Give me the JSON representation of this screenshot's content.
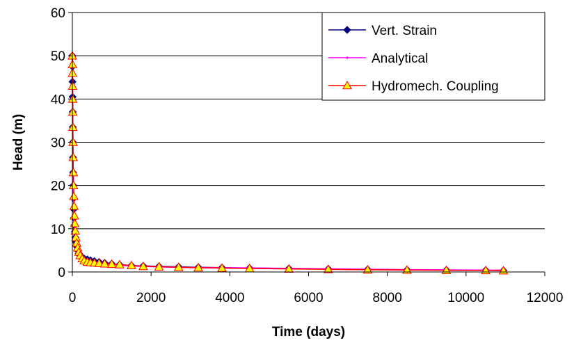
{
  "chart_data": {
    "type": "line",
    "title": "",
    "xlabel": "Time (days)",
    "ylabel": "Head (m)",
    "xlim": [
      0,
      12000
    ],
    "ylim": [
      0,
      60
    ],
    "xticks": [
      0,
      2000,
      4000,
      6000,
      8000,
      10000,
      12000
    ],
    "yticks": [
      0,
      10,
      20,
      30,
      40,
      50,
      60
    ],
    "grid": "horizontal",
    "legend": "top-right",
    "series": [
      {
        "name": "Vert. Strain",
        "color": "#000080",
        "marker": "diamond",
        "x": [
          0,
          2,
          4,
          6,
          8,
          10,
          13,
          16,
          20,
          25,
          30,
          36,
          43,
          52,
          62,
          75,
          90,
          110,
          135,
          165,
          200,
          250,
          300,
          380,
          460,
          560,
          680,
          820,
          1000,
          1200,
          1500,
          1800,
          2200,
          2700,
          3200,
          3800,
          4500,
          5500,
          6500,
          7500,
          8500,
          9500,
          10500,
          10950
        ],
        "y": [
          50.0,
          47.5,
          44.0,
          40.5,
          37.0,
          33.5,
          30.0,
          26.5,
          23.0,
          20.0,
          17.0,
          14.5,
          12.5,
          10.8,
          9.3,
          8.0,
          6.9,
          5.9,
          5.0,
          4.3,
          3.8,
          3.4,
          3.1,
          2.9,
          2.7,
          2.5,
          2.3,
          2.1,
          1.9,
          1.7,
          1.5,
          1.4,
          1.3,
          1.2,
          1.1,
          1.0,
          0.9,
          0.8,
          0.7,
          0.6,
          0.5,
          0.45,
          0.4,
          0.35
        ]
      },
      {
        "name": "Analytical",
        "color": "#ff00ff",
        "marker": "dot",
        "x": [
          0,
          2,
          4,
          6,
          8,
          10,
          13,
          16,
          20,
          25,
          30,
          36,
          43,
          52,
          62,
          75,
          90,
          110,
          135,
          165,
          200,
          250,
          300,
          380,
          460,
          560,
          680,
          820,
          1000,
          1200,
          1500,
          1800,
          2200,
          2700,
          3200,
          3800,
          4500,
          5500,
          6500,
          7500,
          8500,
          9500,
          10500,
          10950
        ],
        "y": [
          50.0,
          47.8,
          44.5,
          41.0,
          37.5,
          34.0,
          30.5,
          27.0,
          23.5,
          20.3,
          17.3,
          14.8,
          12.7,
          10.9,
          9.4,
          8.1,
          7.0,
          6.0,
          5.1,
          4.4,
          3.8,
          3.3,
          3.0,
          2.7,
          2.5,
          2.3,
          2.1,
          1.9,
          1.8,
          1.6,
          1.4,
          1.3,
          1.2,
          1.1,
          1.0,
          0.95,
          0.9,
          0.8,
          0.7,
          0.6,
          0.5,
          0.45,
          0.4,
          0.35
        ]
      },
      {
        "name": "Hydromech. Coupling",
        "color": "#ff0000",
        "marker": "triangle",
        "marker_fill": "#ffff00",
        "x": [
          0,
          2,
          4,
          6,
          8,
          10,
          13,
          16,
          20,
          25,
          30,
          36,
          43,
          52,
          62,
          75,
          90,
          110,
          135,
          165,
          200,
          250,
          300,
          380,
          460,
          560,
          680,
          820,
          1000,
          1200,
          1500,
          1800,
          2200,
          2700,
          3200,
          3800,
          4500,
          5500,
          6500,
          7500,
          8500,
          9500,
          10500,
          10950
        ],
        "y": [
          50.0,
          48.0,
          46.0,
          43.0,
          40.0,
          37.0,
          33.5,
          30.0,
          26.5,
          23.0,
          20.0,
          17.5,
          15.2,
          13.0,
          11.2,
          9.5,
          8.0,
          6.7,
          5.6,
          4.6,
          3.8,
          3.1,
          2.6,
          2.3,
          2.2,
          2.1,
          2.0,
          1.9,
          1.8,
          1.7,
          1.5,
          1.3,
          1.2,
          1.1,
          1.0,
          0.9,
          0.8,
          0.7,
          0.6,
          0.5,
          0.45,
          0.4,
          0.35,
          0.3
        ]
      }
    ]
  }
}
